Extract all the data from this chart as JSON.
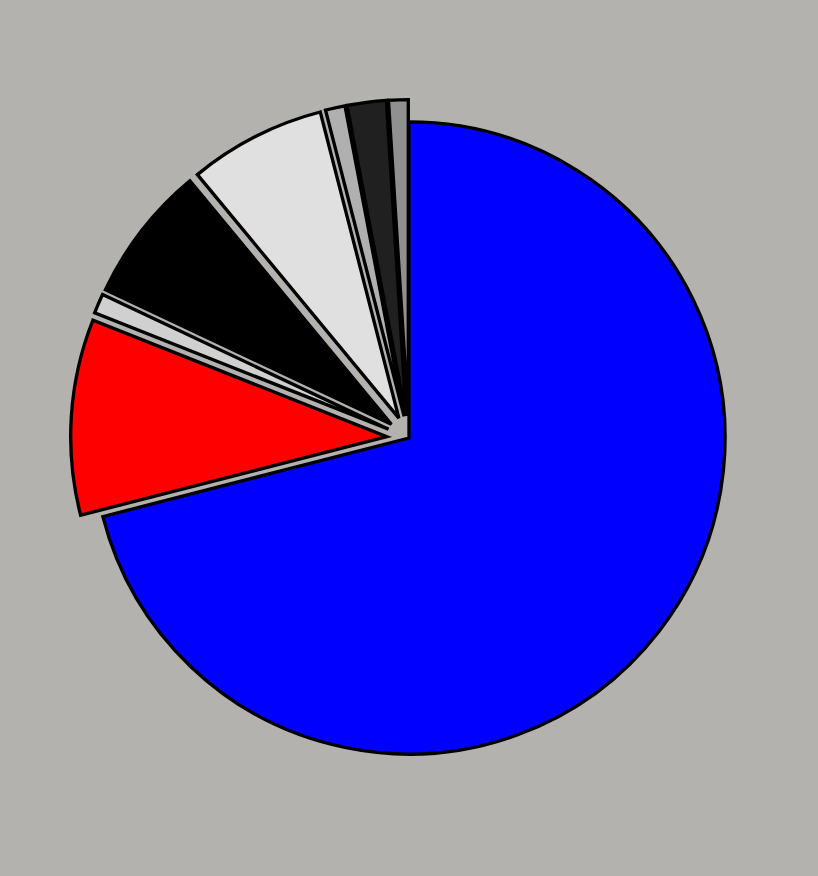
{
  "chart_data": {
    "type": "pie",
    "categories": [
      null,
      null,
      null,
      null,
      null,
      null,
      null,
      null
    ],
    "values": [
      71,
      10,
      1,
      7,
      7,
      1,
      2,
      1
    ],
    "colors": [
      "#0000ff",
      "#ff0000",
      "#d0d0d0",
      "#000000",
      "#e0e0e0",
      "#b0b0b0",
      "#202020",
      "#909090"
    ]
  }
}
